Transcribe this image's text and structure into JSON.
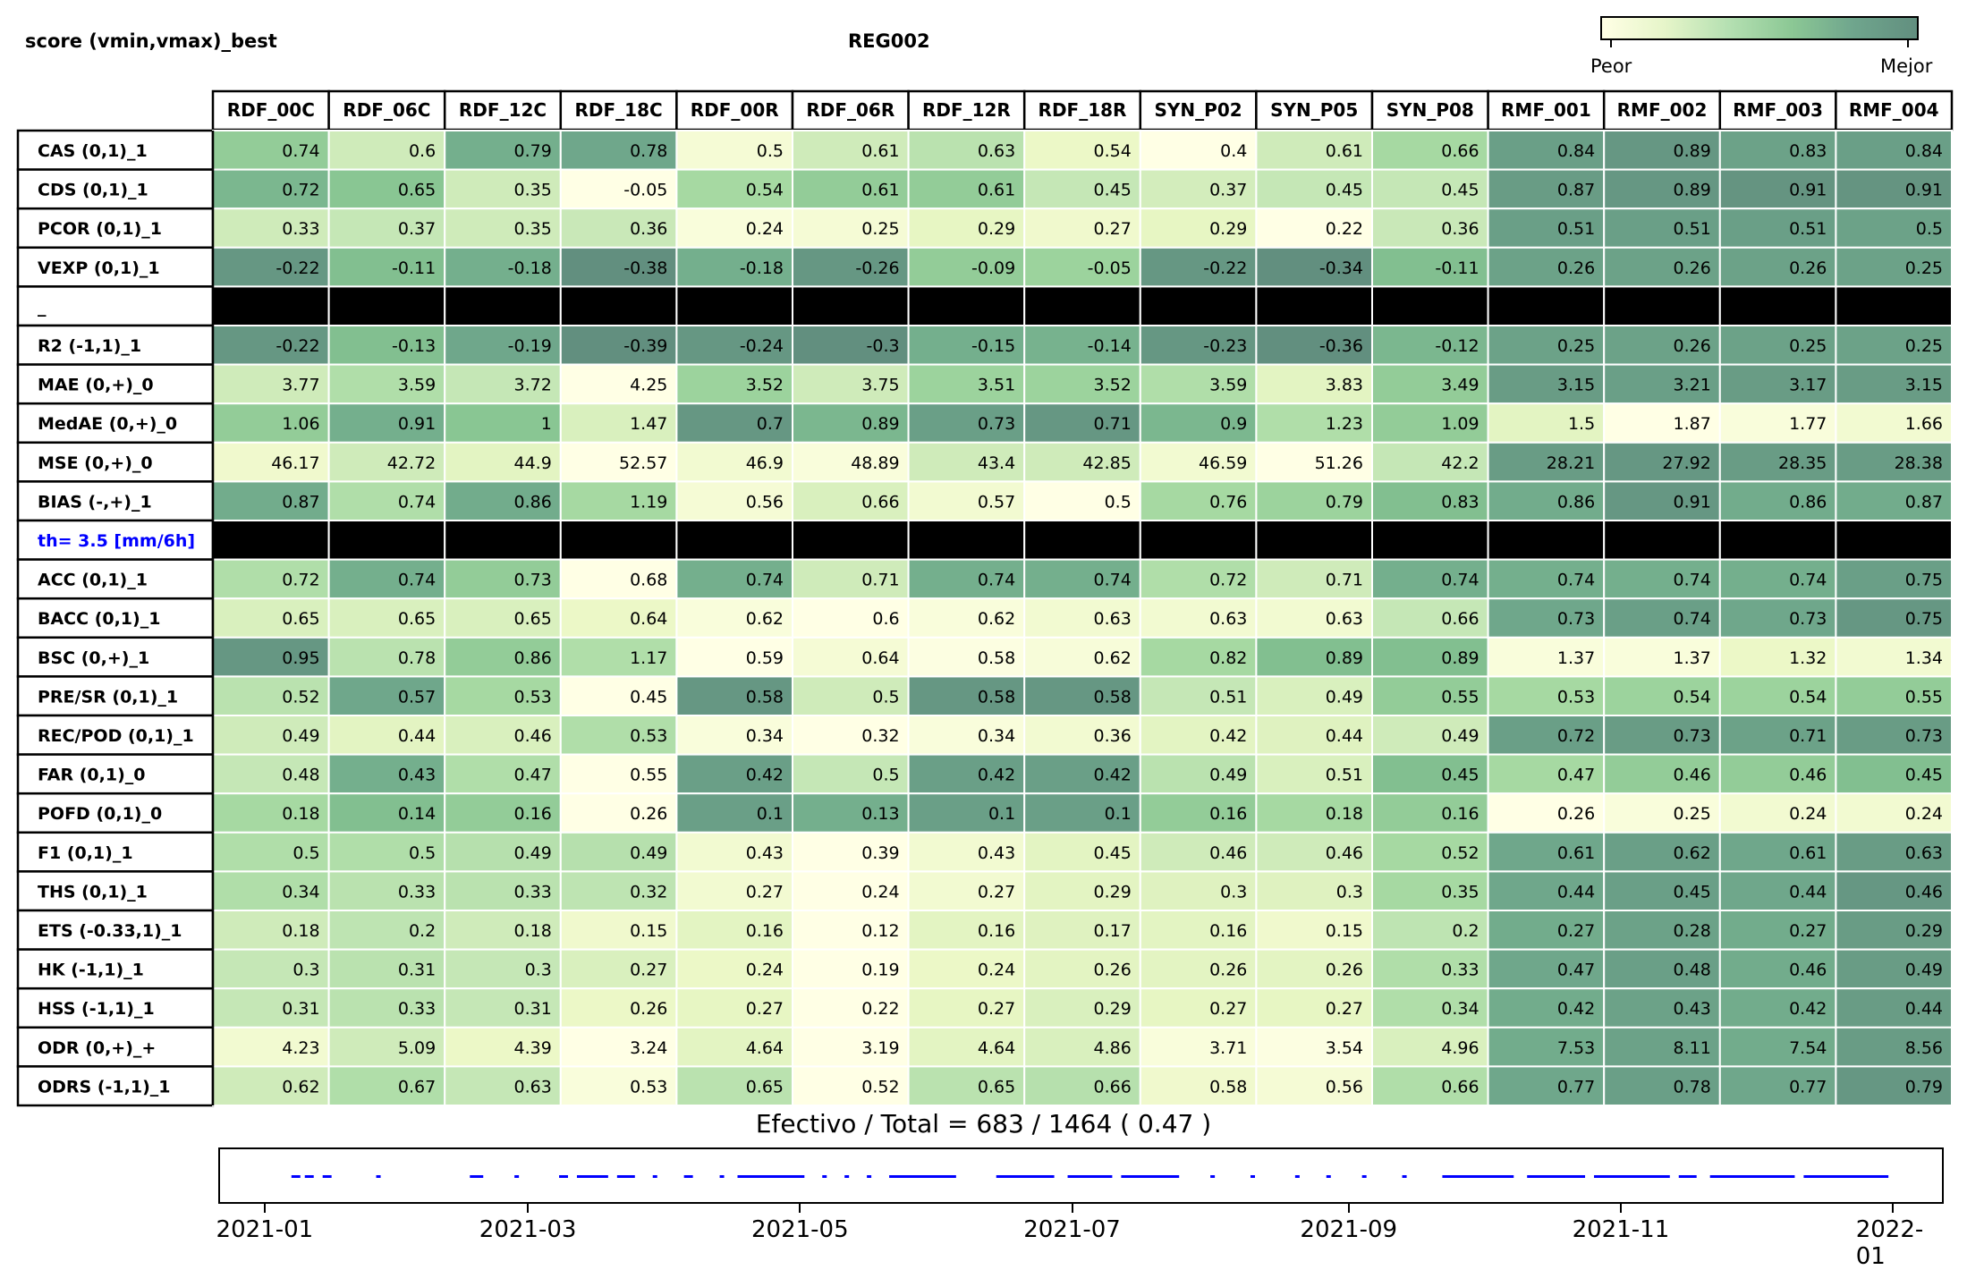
{
  "header": {
    "title_left": "score (vmin,vmax)_best",
    "title_center": "REG002",
    "colorbar_low": "Peor",
    "colorbar_high": "Mejor"
  },
  "colors": {
    "scale": [
      "#ffffe5",
      "#eaf7c4",
      "#c8e8b8",
      "#a6d9a2",
      "#86c491",
      "#70aa8c",
      "#628f7f"
    ],
    "separator": "#000000",
    "threshold_label": "#0000ff",
    "timeline_marks": "#0000ff"
  },
  "chart_data": {
    "type": "heatmap",
    "columns": [
      "RDF_00C",
      "RDF_06C",
      "RDF_12C",
      "RDF_18C",
      "RDF_00R",
      "RDF_06R",
      "RDF_12R",
      "RDF_18R",
      "SYN_P02",
      "SYN_P05",
      "SYN_P08",
      "RMF_001",
      "RMF_002",
      "RMF_003",
      "RMF_004"
    ],
    "rows": [
      {
        "label": "CAS (0,1)_1",
        "values": [
          0.74,
          0.6,
          0.79,
          0.78,
          0.5,
          0.61,
          0.63,
          0.54,
          0.4,
          0.61,
          0.66,
          0.84,
          0.89,
          0.83,
          0.84
        ]
      },
      {
        "label": "CDS (0,1)_1",
        "values": [
          0.72,
          0.65,
          0.35,
          -0.05,
          0.54,
          0.61,
          0.61,
          0.45,
          0.37,
          0.45,
          0.45,
          0.87,
          0.89,
          0.91,
          0.91
        ]
      },
      {
        "label": "PCOR (0,1)_1",
        "values": [
          0.33,
          0.37,
          0.35,
          0.36,
          0.24,
          0.25,
          0.29,
          0.27,
          0.29,
          0.22,
          0.36,
          0.51,
          0.51,
          0.51,
          0.5
        ]
      },
      {
        "label": "VEXP (0,1)_1",
        "values": [
          -0.22,
          -0.11,
          -0.18,
          -0.38,
          -0.18,
          -0.26,
          -0.09,
          -0.05,
          -0.22,
          -0.34,
          -0.11,
          0.26,
          0.26,
          0.26,
          0.25
        ]
      },
      {
        "label": "_",
        "separator": true
      },
      {
        "label": "R2 (-1,1)_1",
        "values": [
          -0.22,
          -0.13,
          -0.19,
          -0.39,
          -0.24,
          -0.3,
          -0.15,
          -0.14,
          -0.23,
          -0.36,
          -0.12,
          0.25,
          0.26,
          0.25,
          0.25
        ]
      },
      {
        "label": "MAE (0,+)_0",
        "values": [
          3.77,
          3.59,
          3.72,
          4.25,
          3.52,
          3.75,
          3.51,
          3.52,
          3.59,
          3.83,
          3.49,
          3.15,
          3.21,
          3.17,
          3.15
        ]
      },
      {
        "label": "MedAE (0,+)_0",
        "values": [
          1.06,
          0.91,
          1.0,
          1.47,
          0.7,
          0.89,
          0.73,
          0.71,
          0.9,
          1.23,
          1.09,
          1.5,
          1.87,
          1.77,
          1.66
        ]
      },
      {
        "label": "MSE (0,+)_0",
        "values": [
          46.17,
          42.72,
          44.9,
          52.57,
          46.9,
          48.89,
          43.4,
          42.85,
          46.59,
          51.26,
          42.2,
          28.21,
          27.92,
          28.35,
          28.38
        ]
      },
      {
        "label": "BIAS (-,+)_1",
        "values": [
          0.87,
          0.74,
          0.86,
          1.19,
          0.56,
          0.66,
          0.57,
          0.5,
          0.76,
          0.79,
          0.83,
          0.86,
          0.91,
          0.86,
          0.87
        ]
      },
      {
        "label": "th= 3.5 [mm/6h]",
        "separator": true,
        "highlight": true
      },
      {
        "label": "ACC (0,1)_1",
        "values": [
          0.72,
          0.74,
          0.73,
          0.68,
          0.74,
          0.71,
          0.74,
          0.74,
          0.72,
          0.71,
          0.74,
          0.74,
          0.74,
          0.74,
          0.75
        ]
      },
      {
        "label": "BACC (0,1)_1",
        "values": [
          0.65,
          0.65,
          0.65,
          0.64,
          0.62,
          0.6,
          0.62,
          0.63,
          0.63,
          0.63,
          0.66,
          0.73,
          0.74,
          0.73,
          0.75
        ]
      },
      {
        "label": "BSC (0,+)_1",
        "values": [
          0.95,
          0.78,
          0.86,
          1.17,
          0.59,
          0.64,
          0.58,
          0.62,
          0.82,
          0.89,
          0.89,
          1.37,
          1.37,
          1.32,
          1.34
        ]
      },
      {
        "label": "PRE/SR (0,1)_1",
        "values": [
          0.52,
          0.57,
          0.53,
          0.45,
          0.58,
          0.5,
          0.58,
          0.58,
          0.51,
          0.49,
          0.55,
          0.53,
          0.54,
          0.54,
          0.55
        ]
      },
      {
        "label": "REC/POD (0,1)_1",
        "values": [
          0.49,
          0.44,
          0.46,
          0.53,
          0.34,
          0.32,
          0.34,
          0.36,
          0.42,
          0.44,
          0.49,
          0.72,
          0.73,
          0.71,
          0.73
        ]
      },
      {
        "label": "FAR (0,1)_0",
        "values": [
          0.48,
          0.43,
          0.47,
          0.55,
          0.42,
          0.5,
          0.42,
          0.42,
          0.49,
          0.51,
          0.45,
          0.47,
          0.46,
          0.46,
          0.45
        ]
      },
      {
        "label": "POFD (0,1)_0",
        "values": [
          0.18,
          0.14,
          0.16,
          0.26,
          0.1,
          0.13,
          0.1,
          0.1,
          0.16,
          0.18,
          0.16,
          0.26,
          0.25,
          0.24,
          0.24
        ]
      },
      {
        "label": "F1 (0,1)_1",
        "values": [
          0.5,
          0.5,
          0.49,
          0.49,
          0.43,
          0.39,
          0.43,
          0.45,
          0.46,
          0.46,
          0.52,
          0.61,
          0.62,
          0.61,
          0.63
        ]
      },
      {
        "label": "THS (0,1)_1",
        "values": [
          0.34,
          0.33,
          0.33,
          0.32,
          0.27,
          0.24,
          0.27,
          0.29,
          0.3,
          0.3,
          0.35,
          0.44,
          0.45,
          0.44,
          0.46
        ]
      },
      {
        "label": "ETS (-0.33,1)_1",
        "values": [
          0.18,
          0.2,
          0.18,
          0.15,
          0.16,
          0.12,
          0.16,
          0.17,
          0.16,
          0.15,
          0.2,
          0.27,
          0.28,
          0.27,
          0.29
        ]
      },
      {
        "label": "HK (-1,1)_1",
        "values": [
          0.3,
          0.31,
          0.3,
          0.27,
          0.24,
          0.19,
          0.24,
          0.26,
          0.26,
          0.26,
          0.33,
          0.47,
          0.48,
          0.46,
          0.49
        ]
      },
      {
        "label": "HSS (-1,1)_1",
        "values": [
          0.31,
          0.33,
          0.31,
          0.26,
          0.27,
          0.22,
          0.27,
          0.29,
          0.27,
          0.27,
          0.34,
          0.42,
          0.43,
          0.42,
          0.44
        ]
      },
      {
        "label": "ODR (0,+)_+",
        "values": [
          4.23,
          5.09,
          4.39,
          3.24,
          4.64,
          3.19,
          4.64,
          4.86,
          3.71,
          3.54,
          4.96,
          7.53,
          8.11,
          7.54,
          8.56
        ]
      },
      {
        "label": "ODRS (-1,1)_1",
        "values": [
          0.62,
          0.67,
          0.63,
          0.53,
          0.65,
          0.52,
          0.65,
          0.66,
          0.58,
          0.56,
          0.66,
          0.77,
          0.78,
          0.77,
          0.79
        ]
      }
    ],
    "cell_scores": [
      [
        0.6,
        0.3,
        0.8,
        0.85,
        0.08,
        0.3,
        0.4,
        0.15,
        0.0,
        0.3,
        0.5,
        0.9,
        0.95,
        0.88,
        0.9
      ],
      [
        0.75,
        0.65,
        0.3,
        0.0,
        0.5,
        0.6,
        0.6,
        0.35,
        0.28,
        0.35,
        0.35,
        0.92,
        0.95,
        0.97,
        0.97
      ],
      [
        0.3,
        0.35,
        0.3,
        0.33,
        0.05,
        0.08,
        0.18,
        0.12,
        0.18,
        0.0,
        0.33,
        0.9,
        0.9,
        0.9,
        0.88
      ],
      [
        0.95,
        0.7,
        0.8,
        1.0,
        0.8,
        0.95,
        0.6,
        0.55,
        0.95,
        1.0,
        0.7,
        0.88,
        0.88,
        0.88,
        0.88
      ],
      null,
      [
        0.95,
        0.7,
        0.85,
        1.0,
        0.95,
        1.0,
        0.8,
        0.78,
        0.95,
        1.0,
        0.75,
        0.88,
        0.88,
        0.88,
        0.88
      ],
      [
        0.3,
        0.45,
        0.35,
        0.0,
        0.55,
        0.3,
        0.55,
        0.55,
        0.45,
        0.2,
        0.6,
        0.92,
        0.9,
        0.92,
        0.92
      ],
      [
        0.6,
        0.8,
        0.65,
        0.25,
        0.95,
        0.75,
        0.9,
        0.95,
        0.75,
        0.45,
        0.6,
        0.2,
        0.0,
        0.05,
        0.1
      ],
      [
        0.12,
        0.3,
        0.2,
        0.0,
        0.1,
        0.05,
        0.3,
        0.3,
        0.1,
        0.0,
        0.35,
        0.92,
        0.95,
        0.92,
        0.92
      ],
      [
        0.82,
        0.45,
        0.82,
        0.5,
        0.08,
        0.25,
        0.1,
        0.0,
        0.5,
        0.55,
        0.7,
        0.82,
        0.95,
        0.82,
        0.82
      ],
      null,
      [
        0.45,
        0.8,
        0.6,
        0.0,
        0.8,
        0.3,
        0.8,
        0.8,
        0.45,
        0.3,
        0.8,
        0.8,
        0.8,
        0.8,
        0.9
      ],
      [
        0.25,
        0.25,
        0.25,
        0.15,
        0.05,
        0.0,
        0.05,
        0.1,
        0.1,
        0.1,
        0.35,
        0.85,
        0.9,
        0.85,
        0.95
      ],
      [
        0.95,
        0.4,
        0.6,
        0.45,
        0.0,
        0.08,
        0.02,
        0.06,
        0.5,
        0.7,
        0.7,
        0.05,
        0.05,
        0.15,
        0.1
      ],
      [
        0.4,
        0.85,
        0.5,
        0.0,
        0.95,
        0.3,
        0.95,
        0.95,
        0.35,
        0.25,
        0.6,
        0.5,
        0.55,
        0.55,
        0.6
      ],
      [
        0.3,
        0.2,
        0.25,
        0.45,
        0.05,
        0.0,
        0.05,
        0.1,
        0.2,
        0.22,
        0.3,
        0.9,
        0.92,
        0.88,
        0.92
      ],
      [
        0.35,
        0.8,
        0.45,
        0.0,
        0.9,
        0.35,
        0.9,
        0.9,
        0.4,
        0.25,
        0.7,
        0.5,
        0.6,
        0.6,
        0.7
      ],
      [
        0.5,
        0.7,
        0.6,
        0.0,
        0.9,
        0.8,
        0.9,
        0.9,
        0.6,
        0.5,
        0.6,
        0.0,
        0.05,
        0.1,
        0.1
      ],
      [
        0.45,
        0.45,
        0.42,
        0.42,
        0.1,
        0.0,
        0.1,
        0.2,
        0.3,
        0.3,
        0.5,
        0.85,
        0.9,
        0.85,
        0.92
      ],
      [
        0.45,
        0.4,
        0.4,
        0.38,
        0.1,
        0.0,
        0.1,
        0.2,
        0.22,
        0.22,
        0.5,
        0.85,
        0.9,
        0.85,
        0.95
      ],
      [
        0.3,
        0.38,
        0.3,
        0.12,
        0.2,
        0.0,
        0.2,
        0.22,
        0.2,
        0.12,
        0.38,
        0.82,
        0.88,
        0.82,
        0.92
      ],
      [
        0.35,
        0.4,
        0.35,
        0.25,
        0.15,
        0.0,
        0.15,
        0.2,
        0.2,
        0.2,
        0.45,
        0.85,
        0.9,
        0.82,
        0.92
      ],
      [
        0.35,
        0.4,
        0.35,
        0.15,
        0.18,
        0.0,
        0.18,
        0.25,
        0.18,
        0.18,
        0.45,
        0.82,
        0.88,
        0.82,
        0.92
      ],
      [
        0.1,
        0.3,
        0.15,
        0.0,
        0.2,
        0.0,
        0.2,
        0.25,
        0.05,
        0.02,
        0.25,
        0.82,
        0.88,
        0.82,
        0.92
      ],
      [
        0.3,
        0.45,
        0.35,
        0.05,
        0.4,
        0.0,
        0.4,
        0.42,
        0.12,
        0.08,
        0.45,
        0.85,
        0.9,
        0.85,
        0.95
      ]
    ],
    "summary_label": "Efectivo / Total  =  683 / 1464 ( 0.47 )",
    "timeline": {
      "x_ticks": [
        "2021-01",
        "2021-03",
        "2021-05",
        "2021-07",
        "2021-09",
        "2021-11",
        "2022-01"
      ],
      "xlim": [
        "2020-12-22",
        "2022-01-12"
      ],
      "segments": [
        [
          "2021-01-07",
          "2021-01-09"
        ],
        [
          "2021-01-10",
          "2021-01-12"
        ],
        [
          "2021-01-14",
          "2021-01-16"
        ],
        [
          "2021-01-26",
          "2021-01-27"
        ],
        [
          "2021-02-16",
          "2021-02-19"
        ],
        [
          "2021-02-26",
          "2021-02-27"
        ],
        [
          "2021-03-08",
          "2021-03-10"
        ],
        [
          "2021-03-12",
          "2021-03-19"
        ],
        [
          "2021-03-21",
          "2021-03-25"
        ],
        [
          "2021-03-29",
          "2021-03-30"
        ],
        [
          "2021-04-05",
          "2021-04-07"
        ],
        [
          "2021-04-13",
          "2021-04-14"
        ],
        [
          "2021-04-17",
          "2021-05-02"
        ],
        [
          "2021-05-06",
          "2021-05-07"
        ],
        [
          "2021-05-11",
          "2021-05-12"
        ],
        [
          "2021-05-16",
          "2021-05-17"
        ],
        [
          "2021-05-21",
          "2021-06-05"
        ],
        [
          "2021-06-14",
          "2021-06-27"
        ],
        [
          "2021-06-30",
          "2021-07-10"
        ],
        [
          "2021-07-12",
          "2021-07-25"
        ],
        [
          "2021-08-01",
          "2021-08-02"
        ],
        [
          "2021-08-10",
          "2021-08-11"
        ],
        [
          "2021-08-20",
          "2021-08-21"
        ],
        [
          "2021-08-27",
          "2021-08-28"
        ],
        [
          "2021-09-04",
          "2021-09-05"
        ],
        [
          "2021-09-13",
          "2021-09-14"
        ],
        [
          "2021-09-22",
          "2021-10-08"
        ],
        [
          "2021-10-11",
          "2021-10-24"
        ],
        [
          "2021-10-26",
          "2021-11-12"
        ],
        [
          "2021-11-14",
          "2021-11-18"
        ],
        [
          "2021-11-21",
          "2021-12-10"
        ],
        [
          "2021-12-12",
          "2021-12-31"
        ]
      ]
    }
  }
}
